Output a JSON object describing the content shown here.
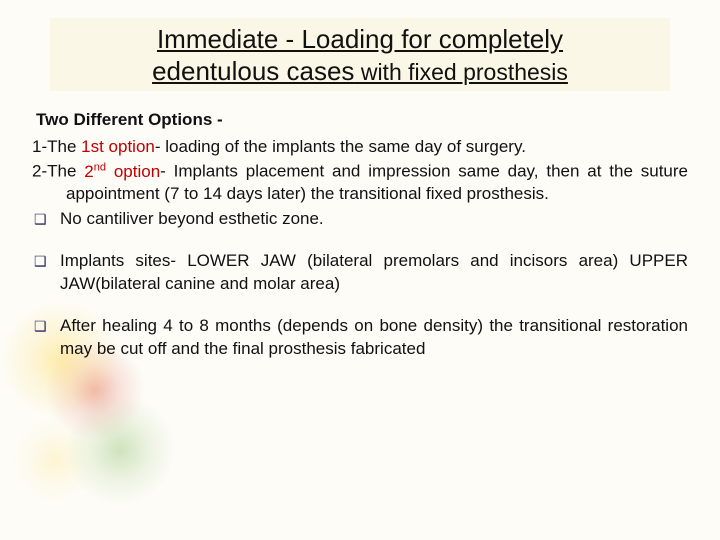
{
  "title": {
    "line1": "Immediate - Loading  for completely",
    "line2_u": "edentulous cases",
    "line2_sub": " with fixed prosthesis"
  },
  "intro": "Two Different Options  -",
  "opt1": {
    "prefix": "1-The ",
    "red": "1st option",
    "rest": "- loading of the implants the same day of surgery."
  },
  "opt2": {
    "prefix": "2-The ",
    "red_a": "2",
    "red_sup": "nd",
    "red_b": " option",
    "rest": "-  Implants placement and impression same day, then at the suture appointment (7 to 14 days later) the transitional fixed prosthesis."
  },
  "bullets": {
    "b1": " No cantiliver beyond esthetic zone.",
    "b2": " Implants sites- LOWER JAW (bilateral premolars and incisors area) UPPER JAW(bilateral canine and molar area)",
    "b3": "After healing  4 to 8  months (depends on bone density) the transitional restoration may be cut off and the final prosthesis fabricated"
  },
  "colors": {
    "title_box_bg": "#fbf7e6",
    "red": "#c00000",
    "bullet": "#2a2a60",
    "text": "#111111",
    "page_bg": "#fdfcf7"
  },
  "fonts": {
    "family": "Verdana",
    "title_size_pt": 20,
    "subtitle_size_pt": 17,
    "body_size_pt": 13
  },
  "bullet_glyph": "❑"
}
